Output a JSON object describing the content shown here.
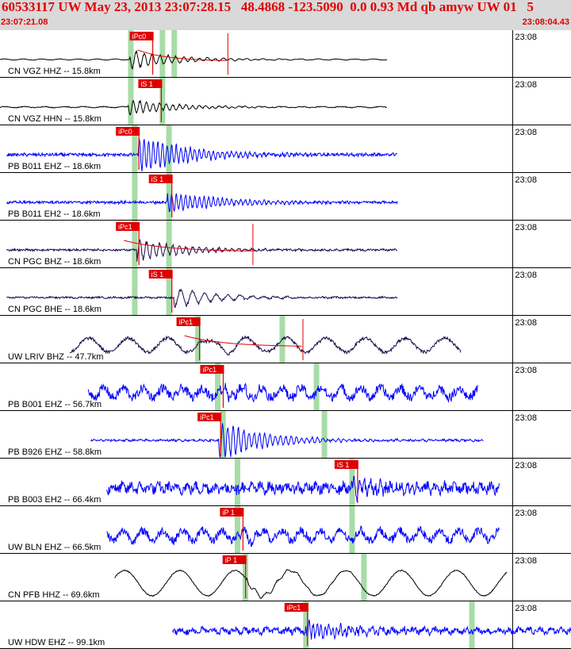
{
  "header": {
    "title": "60533117 UW May 23, 2013 23:07:28.15   48.4868 -123.5090  0.0 0.93 Md qb amyw UW 01   5",
    "time_start": "23:07:21.08",
    "time_end": "23:08:04.43"
  },
  "colors": {
    "header_bg": "#d9d9d9",
    "header_text": "#e00000",
    "trace_black": "#000000",
    "trace_blue": "#0000ff",
    "trace_navy": "#1a0a4a",
    "pick_flag": "#e00000",
    "green_band": "#a8dca8",
    "fit_curve": "#e00000"
  },
  "chart_data": {
    "type": "line",
    "x_range_s": [
      0,
      43.35
    ],
    "tick_label": "23:08",
    "tick_time_s": 38.92,
    "traces": [
      {
        "label": "CN VGZ HHZ -- 15.8km",
        "color": "black",
        "start_s": 0.0,
        "end_s": 29.4,
        "pick": "iPc0",
        "pick_s": 9.85,
        "onset_s": 9.85,
        "green_s": [
          9.9,
          12.3,
          13.2
        ],
        "amp": 0.16,
        "burst": 3.4,
        "period_s": 1.4,
        "noise": 0.06,
        "burst_period_s": 0.6,
        "fit": true,
        "fit_end_s": 17.3
      },
      {
        "label": "CN VGZ HHN -- 15.8km",
        "color": "black",
        "start_s": 0.0,
        "end_s": 29.4,
        "pick": "iS 1",
        "pick_s": 10.5,
        "onset_s": 9.7,
        "green_s": [
          9.9,
          12.3
        ],
        "amp": 0.16,
        "burst": 2.8,
        "period_s": 1.5,
        "noise": 0.12,
        "burst_period_s": 0.5,
        "fit": false
      },
      {
        "label": "PB B011 EHZ -- 18.6km",
        "color": "blue",
        "start_s": 0.5,
        "end_s": 30.2,
        "pick": "iPc0",
        "pick_s": 8.8,
        "onset_s": 10.5,
        "green_s": [
          10.2,
          12.8
        ],
        "amp": 0.12,
        "burst": 7.0,
        "period_s": 0.35,
        "noise": 0.45,
        "burst_period_s": 0.35,
        "fit": false
      },
      {
        "label": "PB B011 EH2 -- 18.6km",
        "color": "blue",
        "start_s": 0.5,
        "end_s": 30.2,
        "pick": "iS 1",
        "pick_s": 11.3,
        "onset_s": 12.7,
        "green_s": [
          10.2,
          12.8
        ],
        "amp": 0.12,
        "burst": 4.0,
        "period_s": 0.35,
        "noise": 0.4,
        "burst_period_s": 0.35,
        "fit": false
      },
      {
        "label": "CN PGC BHZ -- 18.6km",
        "color": "navy",
        "start_s": 0.5,
        "end_s": 30.2,
        "pick": "iPc1",
        "pick_s": 8.8,
        "onset_s": 10.4,
        "green_s": [
          10.2,
          12.8
        ],
        "amp": 0.1,
        "burst": 4.0,
        "period_s": 0.9,
        "noise": 0.3,
        "burst_period_s": 0.5,
        "fit": true,
        "fit_end_s": 19.2
      },
      {
        "label": "CN PGC BHE -- 18.6km",
        "color": "navy",
        "start_s": 0.5,
        "end_s": 30.2,
        "pick": "iS 1",
        "pick_s": 11.3,
        "onset_s": 13.2,
        "green_s": [
          10.2,
          12.8
        ],
        "amp": 0.1,
        "burst": 3.4,
        "period_s": 1.2,
        "noise": 0.25,
        "burst_period_s": 0.9,
        "fit": false
      },
      {
        "label": "UW LRIV BHZ -- 47.7km",
        "color": "navy",
        "start_s": 5.3,
        "end_s": 35.0,
        "pick": "iPc1",
        "pick_s": 13.4,
        "onset_s": 15.0,
        "green_s": [
          15.0,
          21.4
        ],
        "amp": 2.2,
        "burst": 1.5,
        "period_s": 3.0,
        "noise": 0.5,
        "burst_period_s": 1.8,
        "fit": true,
        "fit_end_s": 23.0
      },
      {
        "label": "PB B001 EHZ -- 56.7km",
        "color": "blue",
        "start_s": 6.7,
        "end_s": 36.3,
        "pick": "iPc1",
        "pick_s": 15.2,
        "onset_s": 16.4,
        "green_s": [
          16.5,
          24.0
        ],
        "amp": 1.5,
        "burst": 1.8,
        "period_s": 1.5,
        "noise": 1.4,
        "burst_period_s": 0.5,
        "fit": false
      },
      {
        "label": "PB B926 EHZ -- 58.8km",
        "color": "blue",
        "start_s": 6.9,
        "end_s": 36.7,
        "pick": "iPc1",
        "pick_s": 15.0,
        "onset_s": 16.6,
        "green_s": [
          16.9,
          24.6
        ],
        "amp": 0.15,
        "burst": 7.0,
        "period_s": 0.5,
        "noise": 0.3,
        "burst_period_s": 0.4,
        "fit": false
      },
      {
        "label": "PB B003 EH2 -- 66.4km",
        "color": "blue",
        "start_s": 8.1,
        "end_s": 37.9,
        "pick": "iS 1",
        "pick_s": 25.4,
        "onset_s": 26.8,
        "green_s": [
          18.0,
          26.7
        ],
        "amp": 0.8,
        "burst": 2.8,
        "period_s": 0.7,
        "noise": 1.6,
        "burst_period_s": 0.4,
        "fit": false
      },
      {
        "label": "UW BLN EHZ -- 66.5km",
        "color": "blue",
        "start_s": 8.1,
        "end_s": 37.9,
        "pick": "iP 1",
        "pick_s": 16.7,
        "onset_s": 18.2,
        "green_s": [
          18.0,
          26.7
        ],
        "amp": 1.6,
        "burst": 1.6,
        "period_s": 1.5,
        "noise": 1.3,
        "burst_period_s": 0.8,
        "fit": false
      },
      {
        "label": "CN PFB HHZ -- 69.6km",
        "color": "black",
        "start_s": 8.7,
        "end_s": 38.5,
        "pick": "iP 1",
        "pick_s": 16.9,
        "onset_s": 18.7,
        "green_s": [
          18.6,
          27.6
        ],
        "amp": 4.0,
        "burst": 1.2,
        "period_s": 4.2,
        "noise": 0.15,
        "burst_period_s": 0.8,
        "fit": false
      },
      {
        "label": "UW HDW EHZ -- 99.1km",
        "color": "blue",
        "start_s": 13.1,
        "end_s": 43.35,
        "pick": "iPc1",
        "pick_s": 21.6,
        "onset_s": 23.2,
        "green_s": [
          23.2,
          35.8
        ],
        "amp": 0.6,
        "burst": 3.5,
        "period_s": 0.8,
        "noise": 0.9,
        "burst_period_s": 0.3,
        "fit": false
      }
    ]
  }
}
